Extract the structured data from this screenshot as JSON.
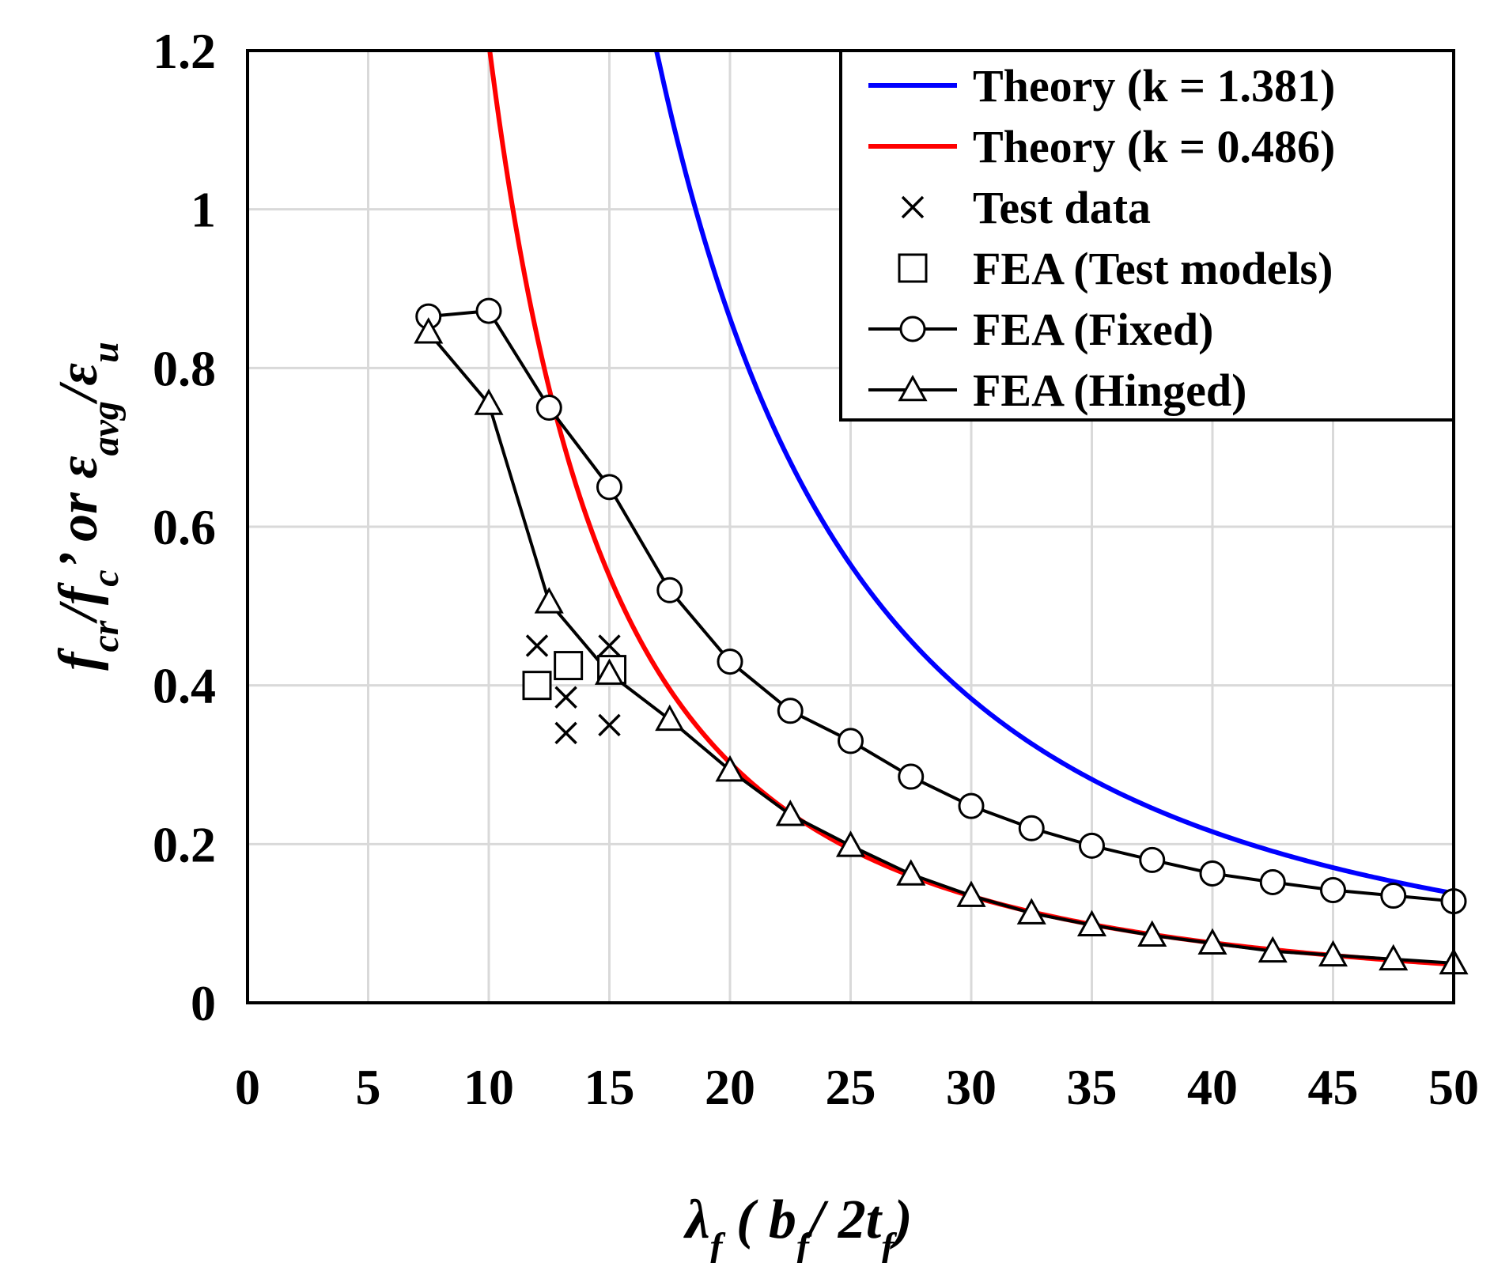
{
  "chart_data": {
    "type": "line",
    "title": "",
    "xlabel": "λf ( bf/ 2tf)",
    "ylabel": "fcr/fc' or εavg/εu",
    "xlim": [
      0,
      50
    ],
    "ylim": [
      0,
      1.2
    ],
    "xticks": [
      0,
      5,
      10,
      15,
      20,
      25,
      30,
      35,
      40,
      45,
      50
    ],
    "yticks": [
      0,
      0.2,
      0.4,
      0.6,
      0.8,
      1,
      1.2
    ],
    "xtick_labels": [
      "0",
      "5",
      "10",
      "15",
      "20",
      "25",
      "30",
      "35",
      "40",
      "45",
      "50"
    ],
    "ytick_labels": [
      "0",
      "0.2",
      "0.4",
      "0.6",
      "0.8",
      "1",
      "1.2"
    ],
    "grid": true,
    "legend_position": "top-right",
    "theory_curves": [
      {
        "name": "Theory (k = 1.381)",
        "coefficient": 345,
        "x_range": [
          16.95,
          50
        ],
        "color": "#0000ff"
      },
      {
        "name": "Theory (k = 0.486)",
        "coefficient": 121,
        "x_range": [
          10.04,
          50
        ],
        "color": "#ff0000"
      }
    ],
    "series": [
      {
        "name": "Test data",
        "marker": "x",
        "line": false,
        "x": [
          12,
          13.2,
          13.2,
          15,
          15
        ],
        "y": [
          0.45,
          0.385,
          0.34,
          0.45,
          0.35
        ]
      },
      {
        "name": "FEA (Test models)",
        "marker": "square",
        "line": false,
        "x": [
          12,
          13.3,
          15.1
        ],
        "y": [
          0.4,
          0.425,
          0.42
        ]
      },
      {
        "name": "FEA (Fixed)",
        "marker": "circle",
        "line": true,
        "x": [
          7.5,
          10,
          12.5,
          15,
          17.5,
          20,
          22.5,
          25,
          27.5,
          30,
          32.5,
          35,
          37.5,
          40,
          42.5,
          45,
          47.5,
          50
        ],
        "y": [
          0.865,
          0.872,
          0.75,
          0.65,
          0.52,
          0.43,
          0.368,
          0.33,
          0.285,
          0.248,
          0.22,
          0.198,
          0.18,
          0.163,
          0.152,
          0.142,
          0.135,
          0.128
        ]
      },
      {
        "name": "FEA (Hinged)",
        "marker": "triangle",
        "line": true,
        "x": [
          7.5,
          10,
          12.5,
          15,
          17.5,
          20,
          22.5,
          25,
          27.5,
          30,
          32.5,
          35,
          37.5,
          40,
          42.5,
          45,
          47.5,
          50
        ],
        "y": [
          0.845,
          0.755,
          0.505,
          0.415,
          0.357,
          0.293,
          0.237,
          0.198,
          0.162,
          0.135,
          0.113,
          0.098,
          0.085,
          0.075,
          0.065,
          0.06,
          0.055,
          0.05
        ]
      }
    ]
  }
}
